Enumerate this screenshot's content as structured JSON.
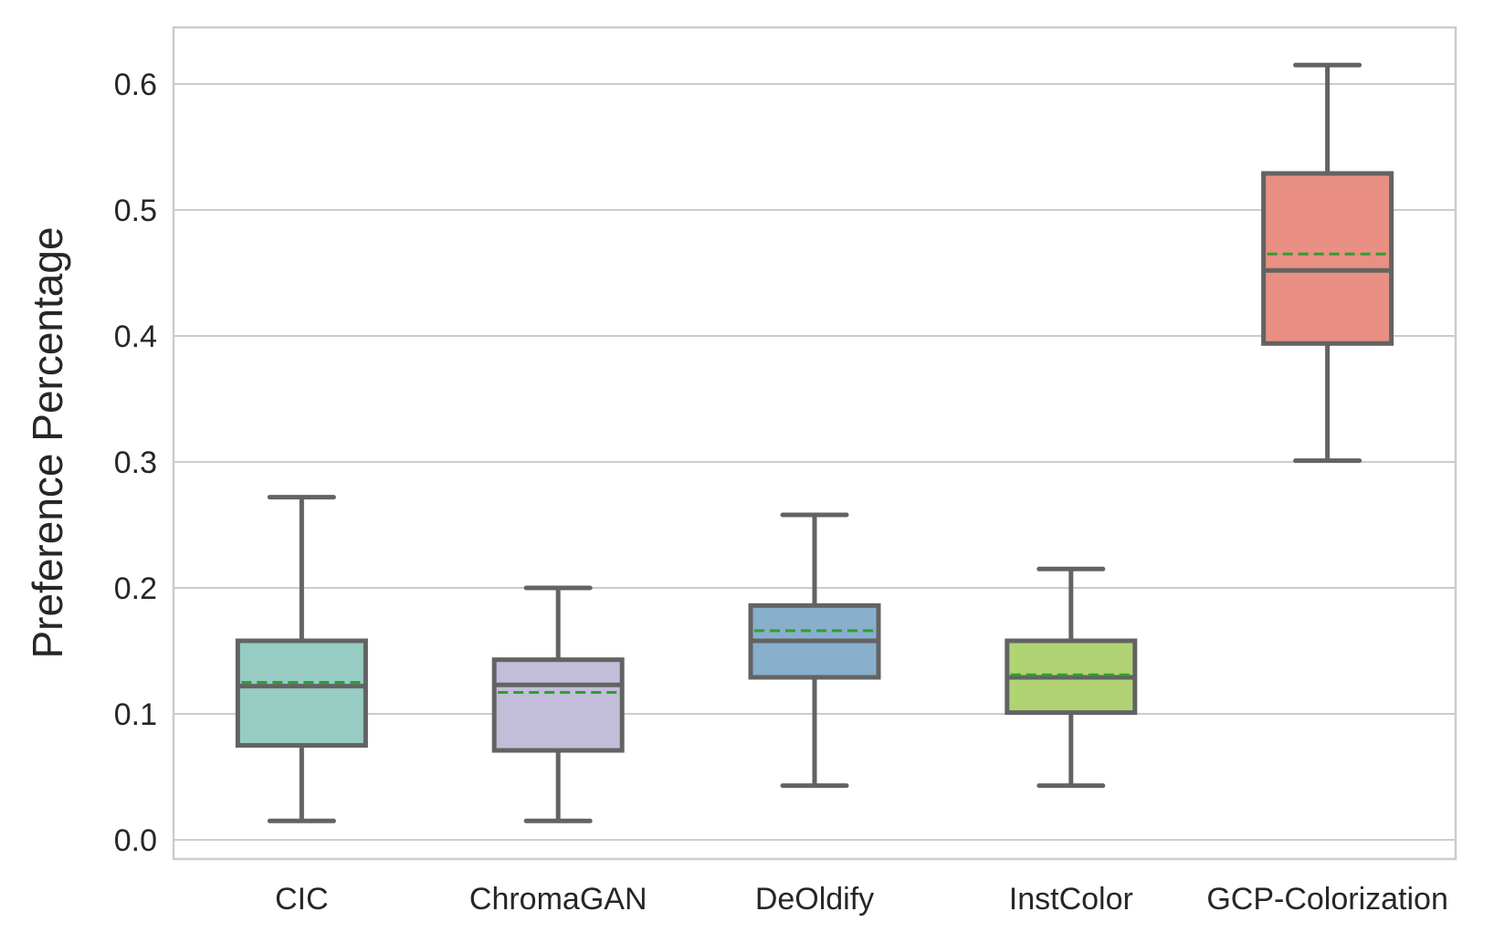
{
  "chart_data": {
    "type": "box",
    "title": "",
    "xlabel": "",
    "ylabel": "Preference Percentage",
    "ylim": [
      -0.016,
      0.645
    ],
    "yticks": [
      "0.0",
      "0.1",
      "0.2",
      "0.3",
      "0.4",
      "0.5",
      "0.6"
    ],
    "grid": true,
    "mean_line_style": "dashed",
    "colors": {
      "box_edge": "#636363",
      "mean_line": "#2ca02c",
      "grid": "#cccccc",
      "spine": "#cccccc"
    },
    "categories": [
      "CIC",
      "ChromaGAN",
      "DeOldify",
      "InstColor",
      "GCP-Colorization"
    ],
    "boxes": [
      {
        "category": "CIC",
        "color": "#96ccc2",
        "whisker_low": 0.015,
        "q1": 0.075,
        "median": 0.122,
        "q3": 0.158,
        "whisker_high": 0.272,
        "mean": 0.125
      },
      {
        "category": "ChromaGAN",
        "color": "#c2bed9",
        "whisker_low": 0.015,
        "q1": 0.071,
        "median": 0.123,
        "q3": 0.143,
        "whisker_high": 0.2,
        "mean": 0.117
      },
      {
        "category": "DeOldify",
        "color": "#88afcc",
        "whisker_low": 0.043,
        "q1": 0.129,
        "median": 0.158,
        "q3": 0.186,
        "whisker_high": 0.258,
        "mean": 0.166
      },
      {
        "category": "InstColor",
        "color": "#b0d374",
        "whisker_low": 0.043,
        "q1": 0.101,
        "median": 0.129,
        "q3": 0.158,
        "whisker_high": 0.215,
        "mean": 0.131
      },
      {
        "category": "GCP-Colorization",
        "color": "#e98f83",
        "whisker_low": 0.301,
        "q1": 0.394,
        "median": 0.452,
        "q3": 0.529,
        "whisker_high": 0.615,
        "mean": 0.465
      }
    ]
  }
}
